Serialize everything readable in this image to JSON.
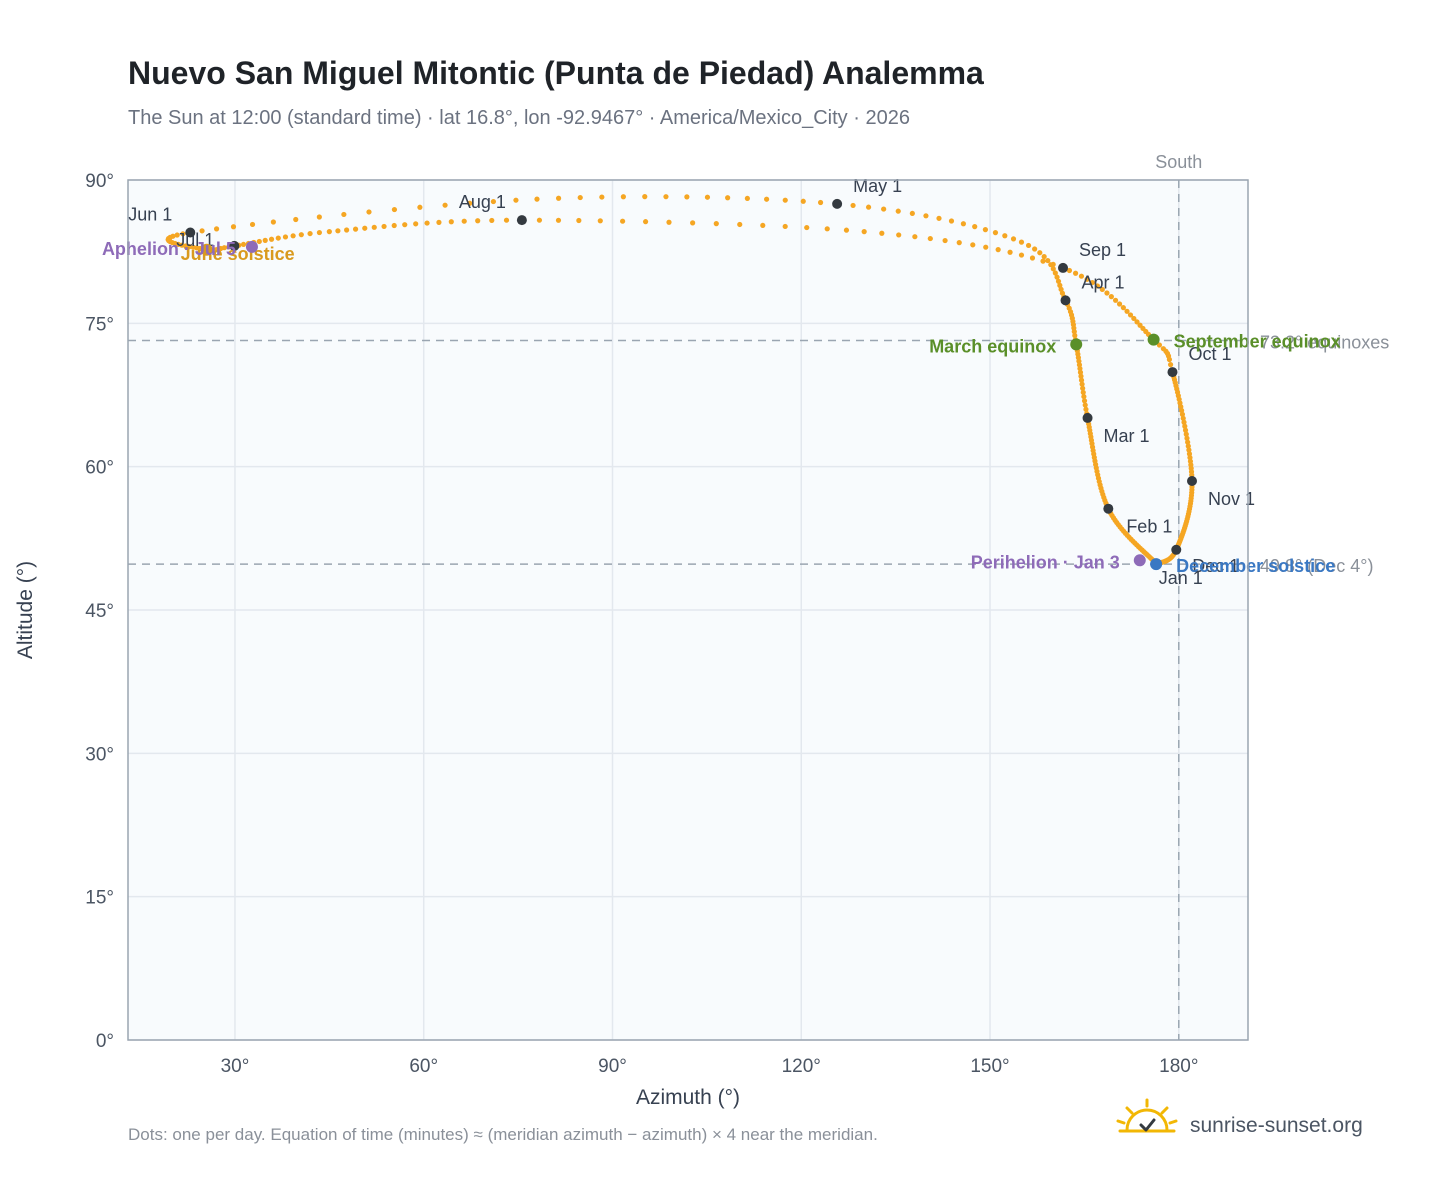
{
  "title": "Nuevo San Miguel Mitontic (Punta de Piedad) Analemma",
  "subtitle": "The Sun at 12:00 (standard time) · lat 16.8°, lon -92.9467° · America/Mexico_City · 2026",
  "footnote": "Dots: one per day. Equation of time (minutes) ≈ (meridian azimuth − azimuth) × 4 near the meridian.",
  "brand": {
    "name": "sunrise-sunset.org",
    "logo_icon": "sun-check-icon",
    "logo_color": "#f2b705"
  },
  "colors": {
    "path": "#f5a623",
    "month": "#343a40",
    "equinox": "#5a8f29",
    "december": "#3a78c3",
    "june": "#d99a1e",
    "apsis": "#8e6bb8",
    "reference": "#9aa5b1"
  },
  "chart_data": {
    "type": "scatter",
    "title": "Nuevo San Miguel Mitontic (Punta de Piedad) Analemma",
    "xlabel": "Azimuth (°)",
    "ylabel": "Altitude (°)",
    "xlim": [
      13,
      191
    ],
    "ylim": [
      0,
      90
    ],
    "grid": true,
    "x_ticks": [
      30,
      60,
      90,
      120,
      150,
      180
    ],
    "y_ticks": [
      0,
      15,
      30,
      45,
      60,
      75,
      90
    ],
    "x_tick_labels": [
      "30°",
      "60°",
      "90°",
      "120°",
      "150°",
      "180°"
    ],
    "y_tick_labels": [
      "0°",
      "15°",
      "30°",
      "45°",
      "60°",
      "75°",
      "90°"
    ],
    "meridian": {
      "azimuth": 180,
      "label": "South"
    },
    "reference_lines": [
      {
        "altitude": 73.2,
        "label": "73.2° equinoxes"
      },
      {
        "altitude": 49.8,
        "label": "49.8° (Dec 4°)"
      }
    ],
    "month_markers": [
      {
        "label": "Jan 1",
        "az": 176.5,
        "alt": 49.8
      },
      {
        "label": "Feb 1",
        "az": 168.8,
        "alt": 55.6
      },
      {
        "label": "Mar 1",
        "az": 165.5,
        "alt": 65.1
      },
      {
        "label": "Apr 1",
        "az": 162.0,
        "alt": 77.4
      },
      {
        "label": "May 1",
        "az": 125.7,
        "alt": 87.5
      },
      {
        "label": "Jun 1",
        "az": 22.9,
        "alt": 84.5
      },
      {
        "label": "Jul 1",
        "az": 29.9,
        "alt": 83.1
      },
      {
        "label": "Aug 1",
        "az": 75.6,
        "alt": 85.8
      },
      {
        "label": "Sep 1",
        "az": 161.6,
        "alt": 80.8
      },
      {
        "label": "Oct 1",
        "az": 179.0,
        "alt": 69.9
      },
      {
        "label": "Nov 1",
        "az": 182.1,
        "alt": 58.5
      },
      {
        "label": "Dec 1",
        "az": 179.6,
        "alt": 51.3
      }
    ],
    "events": [
      {
        "label": "March equinox",
        "az": 163.7,
        "alt": 72.8,
        "color": "#5a8f29"
      },
      {
        "label": "September equinox",
        "az": 176.0,
        "alt": 73.3,
        "color": "#5a8f29"
      },
      {
        "label": "June solstice",
        "az": 25.5,
        "alt": 82.7,
        "color": "#d99a1e"
      },
      {
        "label": "December solstice",
        "az": 176.4,
        "alt": 49.8,
        "color": "#3a78c3"
      },
      {
        "label": "Perihelion · Jan 3",
        "az": 173.8,
        "alt": 50.2,
        "color": "#8e6bb8"
      },
      {
        "label": "Aphelion · Jul 5",
        "az": 32.7,
        "alt": 83.0,
        "color": "#8e6bb8"
      }
    ],
    "daily_series_note": "one point per day, 365 points, interpolated through the path control points",
    "path_control_points": [
      {
        "doy": 0,
        "az": 176.5,
        "alt": 49.8
      },
      {
        "doy": 31,
        "az": 168.8,
        "alt": 55.6
      },
      {
        "doy": 59,
        "az": 165.5,
        "alt": 65.1
      },
      {
        "doy": 78,
        "az": 163.7,
        "alt": 72.8
      },
      {
        "doy": 90,
        "az": 162.0,
        "alt": 77.4
      },
      {
        "doy": 105,
        "az": 155.0,
        "alt": 83.5
      },
      {
        "doy": 120,
        "az": 125.7,
        "alt": 87.5
      },
      {
        "doy": 135,
        "az": 78.0,
        "alt": 88.0
      },
      {
        "doy": 151,
        "az": 22.9,
        "alt": 84.5
      },
      {
        "doy": 171,
        "az": 25.5,
        "alt": 82.7
      },
      {
        "doy": 181,
        "az": 29.9,
        "alt": 83.1
      },
      {
        "doy": 195,
        "az": 45.0,
        "alt": 84.6
      },
      {
        "doy": 212,
        "az": 75.6,
        "alt": 85.8
      },
      {
        "doy": 228,
        "az": 130.0,
        "alt": 84.6
      },
      {
        "doy": 243,
        "az": 161.6,
        "alt": 80.8
      },
      {
        "doy": 265,
        "az": 176.0,
        "alt": 73.3
      },
      {
        "doy": 273,
        "az": 179.0,
        "alt": 69.9
      },
      {
        "doy": 304,
        "az": 182.1,
        "alt": 58.5
      },
      {
        "doy": 334,
        "az": 179.6,
        "alt": 51.3
      },
      {
        "doy": 354,
        "az": 176.4,
        "alt": 49.8
      },
      {
        "doy": 365,
        "az": 176.5,
        "alt": 49.8
      }
    ]
  }
}
